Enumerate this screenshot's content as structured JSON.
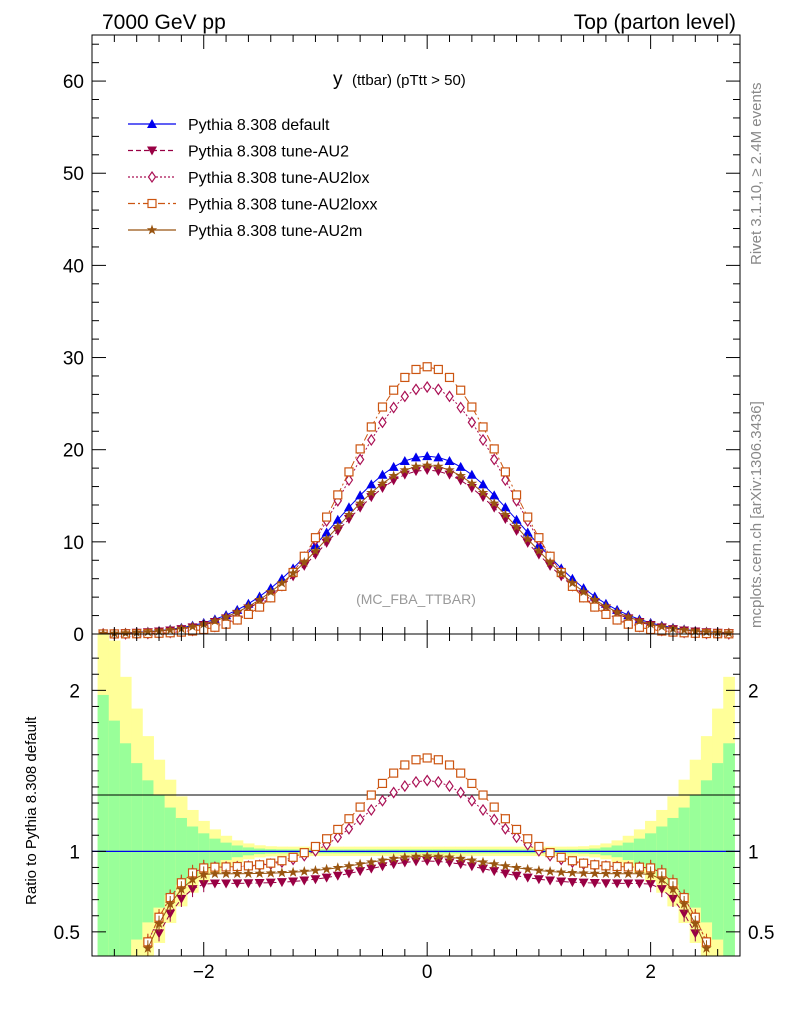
{
  "header": {
    "left": "7000 GeV pp",
    "right": "Top (parton level)"
  },
  "side_labels": {
    "rivet": "Rivet 3.1.10, ≥ 2.4M events",
    "mcplots": "mcplots.cern.ch [arXiv:1306.3436]"
  },
  "chart_data": [
    {
      "type": "line",
      "title": "y (ttbar) (pTtt > 50)",
      "title_main": "y",
      "title_sub": "(ttbar) (pTtt > 50)",
      "watermark": "(MC_FBA_TTBAR)",
      "xlim": [
        -3,
        2.8
      ],
      "ylim": [
        0,
        65
      ],
      "yticks": [
        0,
        10,
        20,
        30,
        40,
        50,
        60
      ],
      "ytick_labels": [
        "0",
        "10",
        "20",
        "30",
        "40",
        "50",
        "60"
      ],
      "legend_position": "top-left",
      "series": [
        {
          "name": "Pythia 8.308 default",
          "color": "#0000ee",
          "marker": "triangle-up",
          "line": "solid",
          "amplitude": 19.3,
          "width": 0.85
        },
        {
          "name": "Pythia 8.308 tune-AU2",
          "color": "#990044",
          "marker": "triangle-down",
          "line": "dashed",
          "amplitude": 17.8,
          "width": 0.83
        },
        {
          "name": "Pythia 8.308 tune-AU2lox",
          "color": "#aa1155",
          "marker": "diamond-open",
          "line": "dotted",
          "amplitude": 26.8,
          "width": 0.72
        },
        {
          "name": "Pythia 8.308 tune-AU2loxx",
          "color": "#cc5511",
          "marker": "square-open",
          "line": "dashdot",
          "amplitude": 29.0,
          "width": 0.7
        },
        {
          "name": "Pythia 8.308 tune-AU2m",
          "color": "#995511",
          "marker": "star",
          "line": "solid",
          "amplitude": 18.3,
          "width": 0.84
        }
      ]
    },
    {
      "type": "line",
      "ylabel": "Ratio to Pythia 8.308 default",
      "xlim": [
        -3,
        2.8
      ],
      "ylim": [
        0.35,
        2.35
      ],
      "xticks": [
        -2,
        0,
        2
      ],
      "xtick_labels": [
        "−2",
        "0",
        "2"
      ],
      "yticks": [
        0.5,
        1,
        2
      ],
      "ytick_labels": [
        "0.5",
        "1",
        "2"
      ],
      "band_colors": {
        "inner": "#99ff99",
        "outer": "#ffff99"
      },
      "reference_line": 1,
      "ratio_profiles": [
        {
          "name": "Pythia 8.308 tune-AU2",
          "center": 0.94,
          "edge": 0.8
        },
        {
          "name": "Pythia 8.308 tune-AU2lox",
          "center": 1.44,
          "edge": 0.9
        },
        {
          "name": "Pythia 8.308 tune-AU2loxx",
          "center": 1.58,
          "edge": 0.9
        },
        {
          "name": "Pythia 8.308 tune-AU2m",
          "center": 0.97,
          "edge": 0.86
        }
      ]
    }
  ]
}
